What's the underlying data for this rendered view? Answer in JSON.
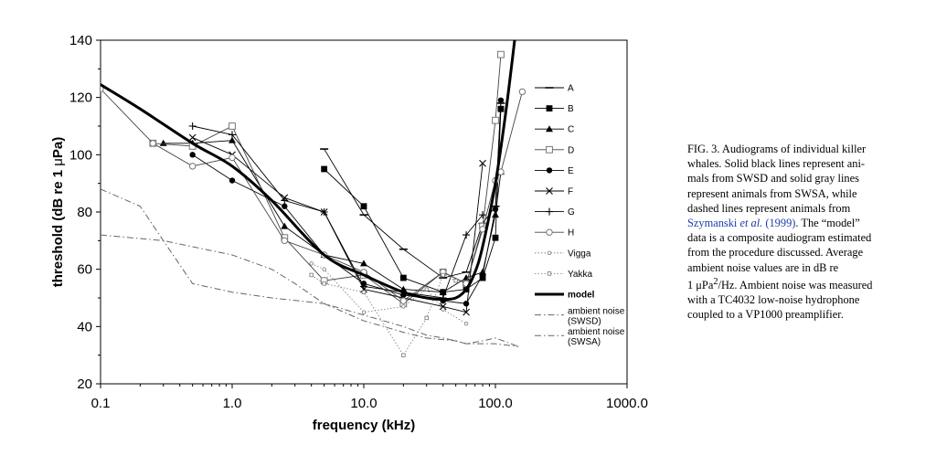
{
  "figure": {
    "ylabel_main": "threshold (dB re 1 ",
    "ylabel_unit": "Pa)",
    "ylabel_mu": "μ",
    "xlabel": "frequency (kHz)",
    "x_tick_labels": [
      "0.1",
      "1.0",
      "10.0",
      "100.0",
      "1000.0"
    ],
    "y_tick_labels": [
      "20",
      "40",
      "60",
      "80",
      "100",
      "120",
      "140"
    ]
  },
  "legend": [
    {
      "label": "A",
      "color": "#000000"
    },
    {
      "label": "B",
      "color": "#000000"
    },
    {
      "label": "C",
      "color": "#000000"
    },
    {
      "label": "D",
      "color": "#7f7f7f"
    },
    {
      "label": "E",
      "color": "#000000"
    },
    {
      "label": "F",
      "color": "#000000"
    },
    {
      "label": "G",
      "color": "#000000"
    },
    {
      "label": "H",
      "color": "#7f7f7f"
    },
    {
      "label": "Vigga",
      "color": "#7f7f7f"
    },
    {
      "label": "Yakka",
      "color": "#7f7f7f"
    },
    {
      "label": "model",
      "color": "#000000"
    },
    {
      "label": "ambient noise (SWSD)",
      "line1": "ambient noise",
      "line2": "(SWSD)",
      "color": "#555555"
    },
    {
      "label": "ambient noise (SWSA)",
      "line1": "ambient noise",
      "line2": "(SWSA)",
      "color": "#555555"
    }
  ],
  "chart_data": {
    "type": "line",
    "xlabel": "frequency (kHz)",
    "ylabel": "threshold (dB re 1 μPa)",
    "xscale": "log",
    "xlim": [
      0.1,
      1000
    ],
    "ylim": [
      20,
      140
    ],
    "x_ticks": [
      0.1,
      1,
      10,
      100,
      1000
    ],
    "y_ticks": [
      20,
      40,
      60,
      80,
      100,
      120,
      140
    ],
    "grid": false,
    "legend_position": "right",
    "series": [
      {
        "name": "A",
        "style": "solid-black",
        "marker": "dash",
        "x": [
          5,
          10,
          20,
          40,
          60,
          80,
          100,
          110
        ],
        "y": [
          102,
          79,
          67,
          57,
          59,
          76,
          82,
          118
        ]
      },
      {
        "name": "B",
        "style": "solid-black",
        "marker": "square-filled",
        "x": [
          5,
          10,
          20,
          40,
          60,
          80,
          100,
          110
        ],
        "y": [
          95,
          82,
          57,
          52,
          53,
          57,
          71,
          116
        ]
      },
      {
        "name": "C",
        "style": "solid-black",
        "marker": "triangle",
        "x": [
          0.3,
          0.5,
          1,
          2.5,
          5,
          10,
          20,
          40,
          60,
          80,
          100,
          110
        ],
        "y": [
          104,
          104,
          105,
          75,
          65,
          62,
          53,
          52,
          57,
          59,
          79,
          94
        ]
      },
      {
        "name": "D",
        "style": "solid-gray",
        "marker": "square-open",
        "x": [
          0.25,
          0.5,
          1,
          2.5,
          5,
          10,
          20,
          40,
          60,
          80,
          100,
          110
        ],
        "y": [
          104,
          103,
          110,
          71,
          56,
          58,
          48,
          59,
          55,
          75,
          112,
          135
        ]
      },
      {
        "name": "E",
        "style": "solid-black",
        "marker": "circle-filled",
        "x": [
          0.5,
          1,
          2.5,
          5,
          10,
          20,
          40,
          60,
          80,
          100,
          110
        ],
        "y": [
          100,
          91,
          82,
          65,
          55,
          51,
          49,
          48,
          58,
          81,
          119
        ]
      },
      {
        "name": "F",
        "style": "solid-black",
        "marker": "x",
        "x": [
          0.5,
          1,
          2.5,
          5,
          10,
          20,
          40,
          60,
          80
        ],
        "y": [
          106,
          100,
          85,
          80,
          53,
          50,
          47,
          45,
          97
        ]
      },
      {
        "name": "G",
        "style": "solid-black",
        "marker": "plus",
        "x": [
          0.5,
          1,
          2.5,
          5,
          10,
          20,
          40,
          60,
          80
        ],
        "y": [
          110,
          107,
          84,
          80,
          54,
          52,
          50,
          72,
          79
        ]
      },
      {
        "name": "H",
        "style": "solid-gray",
        "marker": "circle-open",
        "x": [
          0.1,
          0.25,
          0.5,
          1,
          2.5,
          5,
          10,
          20,
          40,
          60,
          80,
          100,
          110,
          160
        ],
        "y": [
          123,
          104,
          96,
          99,
          70,
          65,
          59,
          49,
          59,
          55,
          74,
          91,
          94,
          122
        ]
      },
      {
        "name": "Vigga",
        "style": "dotted-gray",
        "marker": "small-circle",
        "x": [
          4,
          5,
          10,
          20,
          30,
          40,
          60
        ],
        "y": [
          62,
          60,
          45,
          47,
          53,
          46,
          41
        ]
      },
      {
        "name": "Yakka",
        "style": "dotted-gray",
        "marker": "small-square",
        "x": [
          4,
          5,
          10,
          20,
          30,
          40,
          50
        ],
        "y": [
          58,
          55,
          52,
          30,
          43,
          58,
          56
        ]
      },
      {
        "name": "model",
        "style": "thick-black",
        "marker": "none",
        "x": [
          0.1,
          0.2,
          0.5,
          1,
          2,
          5,
          10,
          20,
          30,
          40,
          50,
          60,
          70,
          80,
          100,
          120,
          140
        ],
        "y": [
          124.5,
          116,
          104,
          96,
          84,
          65,
          58,
          52,
          50,
          49.5,
          50,
          53,
          59,
          68,
          90,
          115,
          140
        ]
      },
      {
        "name": "ambient noise (SWSD)",
        "style": "dashdot-gray",
        "marker": "none",
        "x": [
          0.1,
          0.2,
          0.3,
          0.5,
          1,
          2,
          5,
          10,
          20,
          30,
          40,
          50,
          60,
          80,
          100,
          150
        ],
        "y": [
          88,
          82,
          70,
          55,
          52,
          50,
          48,
          44,
          40,
          37,
          36,
          35,
          34,
          35,
          36,
          33
        ]
      },
      {
        "name": "ambient noise (SWSA)",
        "style": "dashdot-gray",
        "marker": "none",
        "x": [
          0.1,
          0.3,
          1,
          2,
          3,
          5,
          10,
          20,
          30,
          50,
          60,
          100,
          150
        ],
        "y": [
          72,
          70,
          65,
          60,
          55,
          48,
          42,
          38,
          36,
          35,
          34,
          34,
          33
        ]
      }
    ]
  },
  "caption": {
    "lines": [
      "FIG. 3. Audiograms of individual killer",
      "whales. Solid black lines represent ani-",
      "mals from SWSD and solid gray lines",
      "represent animals from SWSA, while",
      "dashed lines represent animals from"
    ],
    "cite_author": "Szymanski ",
    "cite_etal": "et al.",
    "cite_year": " (1999)",
    "after_cite": ". The “model”",
    "rest_lines": [
      "data is a composite audiogram estimated",
      "from the procedure discussed. Average",
      "ambient noise values are in dB re"
    ],
    "unit_pre": "1 μPa",
    "unit_sup": "2",
    "unit_post": "/Hz. Ambient noise was measured",
    "final_lines": [
      "with a TC4032 low-noise hydrophone",
      "coupled to a VP1000 preamplifier."
    ]
  }
}
